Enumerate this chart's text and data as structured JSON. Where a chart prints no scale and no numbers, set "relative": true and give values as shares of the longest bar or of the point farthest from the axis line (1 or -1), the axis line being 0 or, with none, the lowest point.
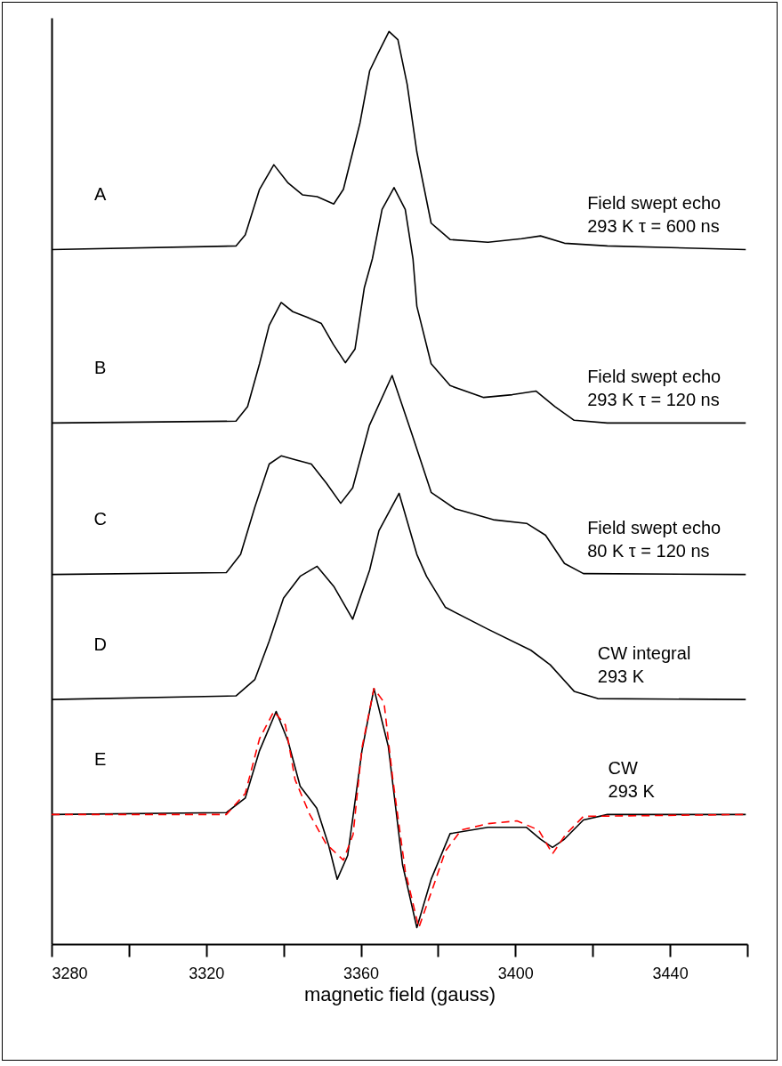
{
  "chart_data": {
    "type": "line",
    "relative": true,
    "xlabel": "magnetic field (gauss)",
    "xlim": [
      3280,
      3460
    ],
    "xticks": [
      3280,
      {
        "value": 3300,
        "label": null
      },
      3320,
      {
        "value": 3340,
        "label": null
      },
      3360,
      {
        "value": 3380,
        "label": null
      },
      3400,
      {
        "value": 3420,
        "label": null
      },
      3440,
      {
        "value": 3460,
        "label": null
      }
    ],
    "grid": false,
    "marker": "none",
    "series": [
      {
        "name": "A",
        "color": "#000000",
        "line_style": "solid",
        "x": [
          3280,
          3327.7,
          3330.1,
          3333.8,
          3337.5,
          3341.2,
          3344.9,
          3348.7,
          3353,
          3355.5,
          3359.8,
          3362.3,
          3364.7,
          3367.3,
          3369.6,
          3372,
          3374.5,
          3378.2,
          3383.1,
          3392.9,
          3401.6,
          3406.5,
          3412.7,
          3423.8,
          3459.6
        ],
        "values": [
          0.761,
          0.765,
          0.777,
          0.827,
          0.854,
          0.834,
          0.821,
          0.819,
          0.811,
          0.827,
          0.9,
          0.957,
          0.978,
          1.0,
          0.991,
          0.942,
          0.868,
          0.79,
          0.772,
          0.769,
          0.773,
          0.776,
          0.768,
          0.765,
          0.761
        ]
      },
      {
        "name": "B",
        "color": "#000000",
        "line_style": "solid",
        "x": [
          3280,
          3327.7,
          3330.7,
          3333.8,
          3336.3,
          3339.4,
          3342.4,
          3346.1,
          3349.8,
          3352.9,
          3356,
          3358.5,
          3360.9,
          3363,
          3365.5,
          3368.6,
          3371.5,
          3373.5,
          3374.5,
          3378.2,
          3383.1,
          3391.8,
          3399.2,
          3405.3,
          3410.2,
          3415.2,
          3423.8,
          3459.6
        ],
        "values": [
          0.571,
          0.573,
          0.589,
          0.636,
          0.678,
          0.703,
          0.693,
          0.687,
          0.68,
          0.657,
          0.637,
          0.652,
          0.719,
          0.751,
          0.805,
          0.829,
          0.805,
          0.751,
          0.699,
          0.636,
          0.612,
          0.599,
          0.602,
          0.606,
          0.589,
          0.574,
          0.571,
          0.571
        ]
      },
      {
        "name": "C",
        "color": "#000000",
        "line_style": "solid",
        "x": [
          3280,
          3325.2,
          3328.9,
          3332.6,
          3336.3,
          3339.4,
          3342.9,
          3347.2,
          3351.1,
          3354.8,
          3357.9,
          3362.2,
          3368.1,
          3373.3,
          3378.2,
          3384.4,
          3394.3,
          3402.9,
          3407.8,
          3412.7,
          3417.6,
          3459.6
        ],
        "values": [
          0.405,
          0.407,
          0.427,
          0.479,
          0.526,
          0.535,
          0.531,
          0.526,
          0.505,
          0.483,
          0.5,
          0.568,
          0.623,
          0.558,
          0.495,
          0.477,
          0.465,
          0.461,
          0.448,
          0.417,
          0.406,
          0.405
        ]
      },
      {
        "name": "D",
        "color": "#000000",
        "line_style": "solid",
        "x": [
          3280,
          3327.7,
          3332.6,
          3336.3,
          3340,
          3344.3,
          3348.7,
          3353,
          3357.9,
          3362.3,
          3364.7,
          3369.9,
          3374.5,
          3377,
          3381.9,
          3392.9,
          3404,
          3409,
          3415.2,
          3421.3,
          3459.6
        ],
        "values": [
          0.268,
          0.272,
          0.29,
          0.332,
          0.379,
          0.403,
          0.414,
          0.392,
          0.356,
          0.41,
          0.453,
          0.494,
          0.427,
          0.403,
          0.369,
          0.345,
          0.322,
          0.306,
          0.277,
          0.269,
          0.268
        ]
      },
      {
        "name": "E",
        "color": "#000000",
        "line_style": "solid",
        "x": [
          3280,
          3325.2,
          3330.1,
          3333.8,
          3338.1,
          3341.2,
          3344.3,
          3348.6,
          3351.7,
          3353.9,
          3356.6,
          3360.3,
          3363.4,
          3367.1,
          3370.8,
          3374.5,
          3378.2,
          3383.1,
          3392.9,
          3402.8,
          3406.5,
          3409.6,
          3412.7,
          3417.6,
          3423.8,
          3459.6
        ],
        "values": [
          0.142,
          0.144,
          0.16,
          0.212,
          0.255,
          0.222,
          0.173,
          0.149,
          0.108,
          0.071,
          0.097,
          0.212,
          0.28,
          0.217,
          0.087,
          0.018,
          0.071,
          0.121,
          0.128,
          0.128,
          0.115,
          0.106,
          0.115,
          0.136,
          0.142,
          0.142
        ]
      },
      {
        "color": "#ff0000",
        "line_style": "dashed",
        "x": [
          3280,
          3325.2,
          3330.1,
          3333.8,
          3337.5,
          3340.5,
          3343,
          3346.8,
          3351,
          3355.5,
          3358,
          3360.3,
          3363.4,
          3366,
          3368.3,
          3371.5,
          3375,
          3378.5,
          3381.9,
          3386,
          3393,
          3400.4,
          3406,
          3409.6,
          3413,
          3417.6,
          3459.6
        ],
        "values": [
          0.142,
          0.142,
          0.165,
          0.225,
          0.255,
          0.24,
          0.18,
          0.142,
          0.11,
          0.092,
          0.12,
          0.215,
          0.28,
          0.265,
          0.18,
          0.08,
          0.018,
          0.06,
          0.102,
          0.125,
          0.132,
          0.135,
          0.125,
          0.099,
          0.12,
          0.14,
          0.142
        ]
      }
    ],
    "annotations": [
      "Field swept echo\n293 K  τ = 600 ns",
      "Field swept echo\n293 K   τ = 120 ns",
      "Field swept echo\n80 K  τ = 120 ns",
      "CW integral\n293 K",
      "CW\n293 K"
    ]
  }
}
